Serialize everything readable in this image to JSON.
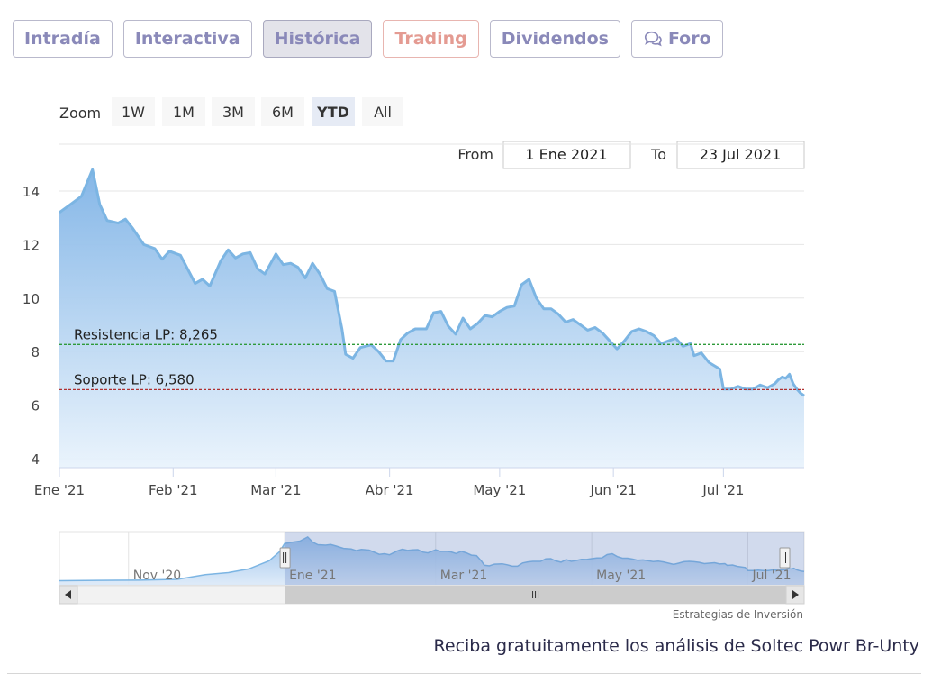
{
  "tabs": {
    "intradia": "Intradía",
    "interactiva": "Interactiva",
    "historica": "Histórica",
    "trading": "Trading",
    "dividendos": "Dividendos",
    "foro": "Foro"
  },
  "zoom": {
    "label": "Zoom",
    "buttons": [
      "1W",
      "1M",
      "3M",
      "6M",
      "YTD",
      "All"
    ],
    "selected": "YTD"
  },
  "range": {
    "from_label": "From",
    "from_value": "1 Ene 2021",
    "to_label": "To",
    "to_value": "23 Jul 2021"
  },
  "credit": "Estrategias de Inversión",
  "footer": "Reciba gratuitamente los análisis de Soltec Powr Br-Unty",
  "colors": {
    "line": "#7cb5e3",
    "fill_top": "#7fb3e6",
    "resistance": "#2e9a3a",
    "support": "#b03030",
    "navigator_mask": "rgba(102,133,194,0.3)"
  },
  "chart_data": {
    "type": "area",
    "y_ticks": [
      4,
      6,
      8,
      10,
      12,
      14
    ],
    "ylim": [
      4,
      15
    ],
    "x_ticks": [
      {
        "label": "Ene '21",
        "date": "2021-01-01"
      },
      {
        "label": "Feb '21",
        "date": "2021-02-01"
      },
      {
        "label": "Mar '21",
        "date": "2021-03-01"
      },
      {
        "label": "Abr '21",
        "date": "2021-04-01"
      },
      {
        "label": "May '21",
        "date": "2021-05-01"
      },
      {
        "label": "Jun '21",
        "date": "2021-06-01"
      },
      {
        "label": "Jul '21",
        "date": "2021-07-01"
      }
    ],
    "xlim": [
      "2021-01-01",
      "2021-07-23"
    ],
    "series": [
      {
        "points": [
          [
            "2021-01-01",
            13.2
          ],
          [
            "2021-01-04",
            13.5
          ],
          [
            "2021-01-07",
            13.8
          ],
          [
            "2021-01-10",
            14.8
          ],
          [
            "2021-01-12",
            13.5
          ],
          [
            "2021-01-14",
            12.9
          ],
          [
            "2021-01-17",
            12.8
          ],
          [
            "2021-01-19",
            12.95
          ],
          [
            "2021-01-21",
            12.6
          ],
          [
            "2021-01-24",
            12.0
          ],
          [
            "2021-01-27",
            11.85
          ],
          [
            "2021-01-29",
            11.45
          ],
          [
            "2021-01-31",
            11.75
          ],
          [
            "2021-02-03",
            11.6
          ],
          [
            "2021-02-07",
            10.55
          ],
          [
            "2021-02-09",
            10.7
          ],
          [
            "2021-02-11",
            10.45
          ],
          [
            "2021-02-14",
            11.4
          ],
          [
            "2021-02-16",
            11.8
          ],
          [
            "2021-02-18",
            11.5
          ],
          [
            "2021-02-20",
            11.65
          ],
          [
            "2021-02-22",
            11.7
          ],
          [
            "2021-02-24",
            11.1
          ],
          [
            "2021-02-26",
            10.9
          ],
          [
            "2021-03-01",
            11.65
          ],
          [
            "2021-03-03",
            11.25
          ],
          [
            "2021-03-05",
            11.3
          ],
          [
            "2021-03-07",
            11.15
          ],
          [
            "2021-03-09",
            10.75
          ],
          [
            "2021-03-11",
            11.3
          ],
          [
            "2021-03-13",
            10.9
          ],
          [
            "2021-03-15",
            10.35
          ],
          [
            "2021-03-17",
            10.25
          ],
          [
            "2021-03-19",
            8.85
          ],
          [
            "2021-03-20",
            7.9
          ],
          [
            "2021-03-22",
            7.75
          ],
          [
            "2021-03-24",
            8.15
          ],
          [
            "2021-03-27",
            8.25
          ],
          [
            "2021-03-29",
            8.0
          ],
          [
            "2021-03-31",
            7.65
          ],
          [
            "2021-04-02",
            7.65
          ],
          [
            "2021-04-04",
            8.45
          ],
          [
            "2021-04-06",
            8.7
          ],
          [
            "2021-04-08",
            8.85
          ],
          [
            "2021-04-11",
            8.85
          ],
          [
            "2021-04-13",
            9.45
          ],
          [
            "2021-04-15",
            9.5
          ],
          [
            "2021-04-17",
            8.95
          ],
          [
            "2021-04-19",
            8.65
          ],
          [
            "2021-04-21",
            9.25
          ],
          [
            "2021-04-23",
            8.85
          ],
          [
            "2021-04-25",
            9.05
          ],
          [
            "2021-04-27",
            9.35
          ],
          [
            "2021-04-29",
            9.3
          ],
          [
            "2021-05-01",
            9.5
          ],
          [
            "2021-05-03",
            9.65
          ],
          [
            "2021-05-05",
            9.7
          ],
          [
            "2021-05-07",
            10.5
          ],
          [
            "2021-05-09",
            10.7
          ],
          [
            "2021-05-11",
            10.0
          ],
          [
            "2021-05-13",
            9.6
          ],
          [
            "2021-05-15",
            9.6
          ],
          [
            "2021-05-17",
            9.4
          ],
          [
            "2021-05-19",
            9.1
          ],
          [
            "2021-05-21",
            9.2
          ],
          [
            "2021-05-23",
            9.0
          ],
          [
            "2021-05-25",
            8.8
          ],
          [
            "2021-05-27",
            8.9
          ],
          [
            "2021-05-29",
            8.7
          ],
          [
            "2021-05-31",
            8.4
          ],
          [
            "2021-06-02",
            8.1
          ],
          [
            "2021-06-04",
            8.4
          ],
          [
            "2021-06-06",
            8.75
          ],
          [
            "2021-06-08",
            8.85
          ],
          [
            "2021-06-10",
            8.75
          ],
          [
            "2021-06-12",
            8.6
          ],
          [
            "2021-06-14",
            8.3
          ],
          [
            "2021-06-16",
            8.4
          ],
          [
            "2021-06-18",
            8.5
          ],
          [
            "2021-06-20",
            8.2
          ],
          [
            "2021-06-22",
            8.3
          ],
          [
            "2021-06-23",
            7.85
          ],
          [
            "2021-06-25",
            7.95
          ],
          [
            "2021-06-27",
            7.6
          ],
          [
            "2021-06-30",
            7.35
          ],
          [
            "2021-07-01",
            6.6
          ],
          [
            "2021-07-03",
            6.6
          ],
          [
            "2021-07-05",
            6.7
          ],
          [
            "2021-07-07",
            6.6
          ],
          [
            "2021-07-09",
            6.6
          ],
          [
            "2021-07-11",
            6.75
          ],
          [
            "2021-07-13",
            6.65
          ],
          [
            "2021-07-15",
            6.8
          ],
          [
            "2021-07-16",
            6.95
          ],
          [
            "2021-07-17",
            7.05
          ],
          [
            "2021-07-18",
            7.0
          ],
          [
            "2021-07-19",
            7.15
          ],
          [
            "2021-07-20",
            6.8
          ],
          [
            "2021-07-21",
            6.6
          ],
          [
            "2021-07-22",
            6.45
          ],
          [
            "2021-07-23",
            6.35
          ]
        ]
      }
    ],
    "annotations": [
      {
        "label": "Resistencia LP: 8,265",
        "value": 8.265,
        "style": "dashed"
      },
      {
        "label": "Soporte LP: 6,580",
        "value": 6.58,
        "style": "dashed"
      }
    ],
    "navigator": {
      "ticks": [
        "Nov '20",
        "Ene '21",
        "Mar '21",
        "May '21",
        "Jul '21"
      ],
      "xlim": [
        "2020-10-05",
        "2021-07-23"
      ],
      "selected": [
        "2021-01-01",
        "2021-07-23"
      ],
      "history": [
        [
          "2020-10-05",
          4.1
        ],
        [
          "2020-10-20",
          4.2
        ],
        [
          "2020-11-05",
          4.25
        ],
        [
          "2020-11-20",
          4.45
        ],
        [
          "2020-12-01",
          5.6
        ],
        [
          "2020-12-10",
          6.1
        ],
        [
          "2020-12-18",
          7.0
        ],
        [
          "2020-12-26",
          9.0
        ],
        [
          "2020-12-30",
          11.2
        ]
      ]
    }
  }
}
